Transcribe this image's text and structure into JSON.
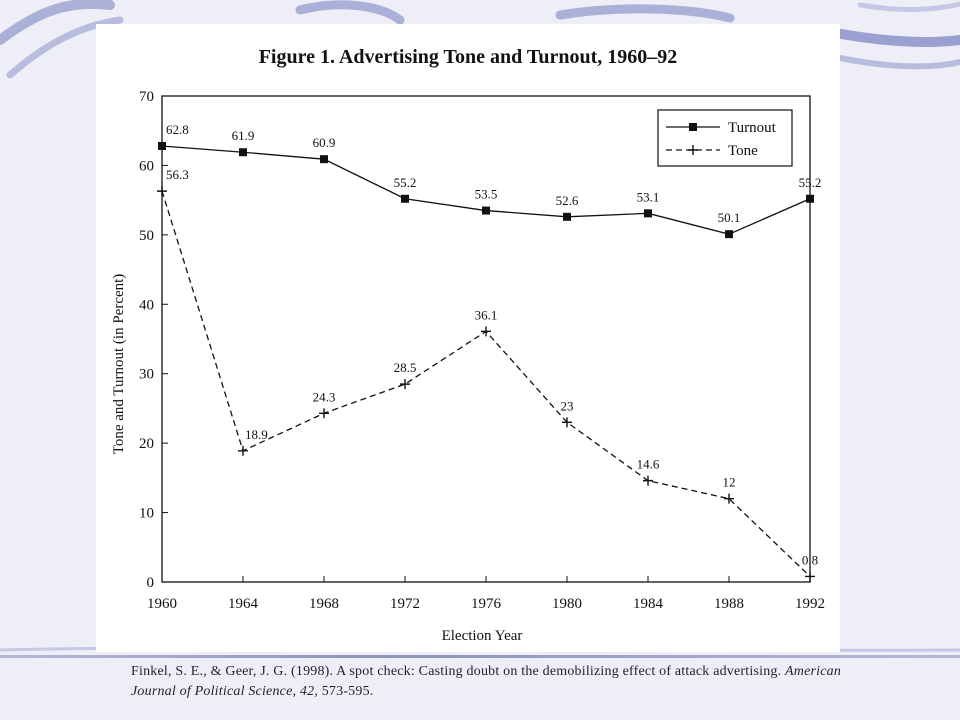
{
  "colors": {
    "background": "#eeeff6",
    "swoosh": "#9aa0cf",
    "panel": "#ffffff",
    "ink": "#111111"
  },
  "citation": {
    "text_before": "Finkel, S. E., & Geer, J. G. (1998). A spot check: Casting doubt on the demobilizing effect of attack advertising. ",
    "journal": "American Journal of Political Science, 42,",
    "text_after": " 573-595."
  },
  "chart_data": {
    "type": "line",
    "title": "Figure 1. Advertising Tone and Turnout, 1960–92",
    "xlabel": "Election Year",
    "ylabel": "Tone and Turnout (in Percent)",
    "x": [
      "1960",
      "1964",
      "1968",
      "1972",
      "1976",
      "1980",
      "1984",
      "1988",
      "1992"
    ],
    "ylim": [
      0,
      70
    ],
    "yticks": [
      "0",
      "10",
      "20",
      "30",
      "40",
      "50",
      "60",
      "70"
    ],
    "grid": false,
    "legend_position": "top-right",
    "series": [
      {
        "name": "Turnout",
        "style": "solid",
        "marker": "square",
        "values": [
          62.8,
          61.9,
          60.9,
          55.2,
          53.5,
          52.6,
          53.1,
          50.1,
          55.2
        ],
        "labels": [
          "62.8",
          "61.9",
          "60.9",
          "55.2",
          "53.5",
          "52.6",
          "53.1",
          "50.1",
          "55.2"
        ]
      },
      {
        "name": "Tone",
        "style": "dashed",
        "marker": "plus",
        "values": [
          56.3,
          18.9,
          24.3,
          28.5,
          36.1,
          23,
          14.6,
          12,
          0.8
        ],
        "labels": [
          "56.3",
          "18.9",
          "24.3",
          "28.5",
          "36.1",
          "23",
          "14.6",
          "12",
          "0.8"
        ]
      }
    ]
  }
}
